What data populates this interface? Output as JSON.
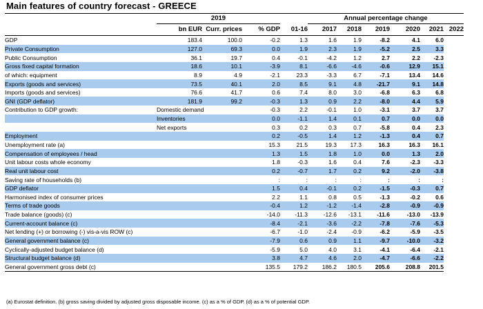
{
  "title": "Main features of country forecast - GREECE",
  "header": {
    "year_group": "2019",
    "annual_change": "Annual percentage change",
    "col_bneur": "bn EUR",
    "col_curr": "Curr. prices",
    "col_pct": "% GDP",
    "col_0116": "01-16",
    "years": [
      "2017",
      "2018",
      "2019",
      "2020",
      "2021",
      "2022"
    ]
  },
  "rows": [
    {
      "label": "GDP",
      "sub": "",
      "v": [
        "183.4",
        "100.0",
        "-0.2",
        "1.3",
        "1.6",
        "1.9",
        "-8.2",
        "4.1",
        "6.0"
      ],
      "hl": false
    },
    {
      "label": "Private Consumption",
      "sub": "",
      "v": [
        "127.0",
        "69.3",
        "0.0",
        "1.9",
        "2.3",
        "1.9",
        "-5.2",
        "2.5",
        "3.3"
      ],
      "hl": true
    },
    {
      "label": "Public Consumption",
      "sub": "",
      "v": [
        "36.1",
        "19.7",
        "0.4",
        "-0.1",
        "-4.2",
        "1.2",
        "2.7",
        "2.2",
        "-2.3"
      ],
      "hl": false
    },
    {
      "label": "Gross fixed capital formation",
      "sub": "",
      "v": [
        "18.6",
        "10.1",
        "-3.9",
        "8.1",
        "-6.6",
        "-4.6",
        "-0.6",
        "12.9",
        "15.1"
      ],
      "hl": true
    },
    {
      "label": "of which: equipment",
      "sub": "",
      "v": [
        "8.9",
        "4.9",
        "-2.1",
        "23.3",
        "-3.3",
        "6.7",
        "-7.1",
        "13.4",
        "14.6"
      ],
      "hl": false
    },
    {
      "label": "Exports (goods and services)",
      "sub": "",
      "v": [
        "73.5",
        "40.1",
        "2.0",
        "8.5",
        "9.1",
        "4.8",
        "-21.7",
        "9.1",
        "14.8"
      ],
      "hl": true
    },
    {
      "label": "Imports (goods and services)",
      "sub": "",
      "v": [
        "76.6",
        "41.7",
        "0.6",
        "7.4",
        "8.0",
        "3.0",
        "-6.8",
        "6.3",
        "6.8"
      ],
      "hl": false
    },
    {
      "label": "GNI (GDP deflator)",
      "sub": "",
      "v": [
        "181.9",
        "99.2",
        "-0.3",
        "1.3",
        "0.9",
        "2.2",
        "-8.0",
        "4.4",
        "5.9"
      ],
      "hl": true
    },
    {
      "label": "Contribution to GDP growth:",
      "sub": "Domestic demand",
      "v": [
        "",
        "",
        "-0.3",
        "2.2",
        "-0.1",
        "1.0",
        "-3.1",
        "3.7",
        "3.7"
      ],
      "hl": false
    },
    {
      "label": "",
      "sub": "Inventories",
      "v": [
        "",
        "",
        "0.0",
        "-1.1",
        "1.4",
        "0.1",
        "0.7",
        "0.0",
        "0.0"
      ],
      "hl": true
    },
    {
      "label": "",
      "sub": "Net exports",
      "v": [
        "",
        "",
        "0.3",
        "0.2",
        "0.3",
        "0.7",
        "-5.8",
        "0.4",
        "2.3"
      ],
      "hl": false
    },
    {
      "label": "Employment",
      "sub": "",
      "v": [
        "",
        "",
        "0.2",
        "-0.5",
        "1.4",
        "1.2",
        "-1.3",
        "0.4",
        "0.7"
      ],
      "hl": true
    },
    {
      "label": "Unemployment rate (a)",
      "sub": "",
      "v": [
        "",
        "",
        "15.3",
        "21.5",
        "19.3",
        "17.3",
        "16.3",
        "16.3",
        "16.1"
      ],
      "hl": false
    },
    {
      "label": "Compensation of employees / head",
      "sub": "",
      "v": [
        "",
        "",
        "1.3",
        "1.5",
        "1.8",
        "1.0",
        "0.0",
        "1.3",
        "2.0"
      ],
      "hl": true
    },
    {
      "label": "Unit labour costs whole economy",
      "sub": "",
      "v": [
        "",
        "",
        "1.8",
        "-0.3",
        "1.6",
        "0.4",
        "7.6",
        "-2.3",
        "-3.3"
      ],
      "hl": false
    },
    {
      "label": "Real unit labour cost",
      "sub": "",
      "v": [
        "",
        "",
        "0.2",
        "-0.7",
        "1.7",
        "0.2",
        "9.2",
        "-2.0",
        "-3.8"
      ],
      "hl": true
    },
    {
      "label": "Saving rate of households (b)",
      "sub": "",
      "v": [
        "",
        "",
        ":",
        ":",
        ":",
        ":",
        ":",
        ":",
        ":"
      ],
      "hl": false
    },
    {
      "label": "GDP deflator",
      "sub": "",
      "v": [
        "",
        "",
        "1.5",
        "0.4",
        "-0.1",
        "0.2",
        "-1.5",
        "-0.3",
        "0.7"
      ],
      "hl": true
    },
    {
      "label": "Harmonised index of consumer prices",
      "sub": "",
      "v": [
        "",
        "",
        "2.2",
        "1.1",
        "0.8",
        "0.5",
        "-1.3",
        "-0.2",
        "0.6"
      ],
      "hl": false
    },
    {
      "label": "Terms of trade goods",
      "sub": "",
      "v": [
        "",
        "",
        "-0.4",
        "1.2",
        "-1.2",
        "-1.4",
        "-2.8",
        "-0.9",
        "-0.9"
      ],
      "hl": true
    },
    {
      "label": "Trade balance (goods) (c)",
      "sub": "",
      "v": [
        "",
        "",
        "-14.0",
        "-11.3",
        "-12.6",
        "-13.1",
        "-11.6",
        "-13.0",
        "-13.9"
      ],
      "hl": false
    },
    {
      "label": "Current-account balance (c)",
      "sub": "",
      "v": [
        "",
        "",
        "-8.4",
        "-2.1",
        "-3.6",
        "-2.2",
        "-7.8",
        "-7.6",
        "-5.3"
      ],
      "hl": true
    },
    {
      "label": "Net lending (+) or borrowing (-) vis-a-vis ROW (c)",
      "sub": "",
      "v": [
        "",
        "",
        "-6.7",
        "-1.0",
        "-2.4",
        "-0.9",
        "-6.2",
        "-5.9",
        "-3.5"
      ],
      "hl": false
    },
    {
      "label": "General government balance (c)",
      "sub": "",
      "v": [
        "",
        "",
        "-7.9",
        "0.6",
        "0.9",
        "1.1",
        "-9.7",
        "-10.0",
        "-3.2"
      ],
      "hl": true
    },
    {
      "label": "Cyclically-adjusted budget balance (d)",
      "sub": "",
      "v": [
        "",
        "",
        "-5.9",
        "5.0",
        "4.0",
        "3.1",
        "-4.1",
        "-6.4",
        "-2.1"
      ],
      "hl": false
    },
    {
      "label": "Structural budget balance (d)",
      "sub": "",
      "v": [
        "",
        "",
        "3.8",
        "4.7",
        "4.6",
        "2.0",
        "-4.7",
        "-6.6",
        "-2.2"
      ],
      "hl": true
    },
    {
      "label": "General government gross debt (c)",
      "sub": "",
      "v": [
        "",
        "",
        "135.5",
        "179.2",
        "186.2",
        "180.5",
        "205.6",
        "208.8",
        "201.5"
      ],
      "hl": false
    }
  ],
  "footnote": "(a) Eurostat definition. (b) gross saving divided by adjusted gross disposable income. (c) as a % of GDP. (d) as a % of potential GDP."
}
